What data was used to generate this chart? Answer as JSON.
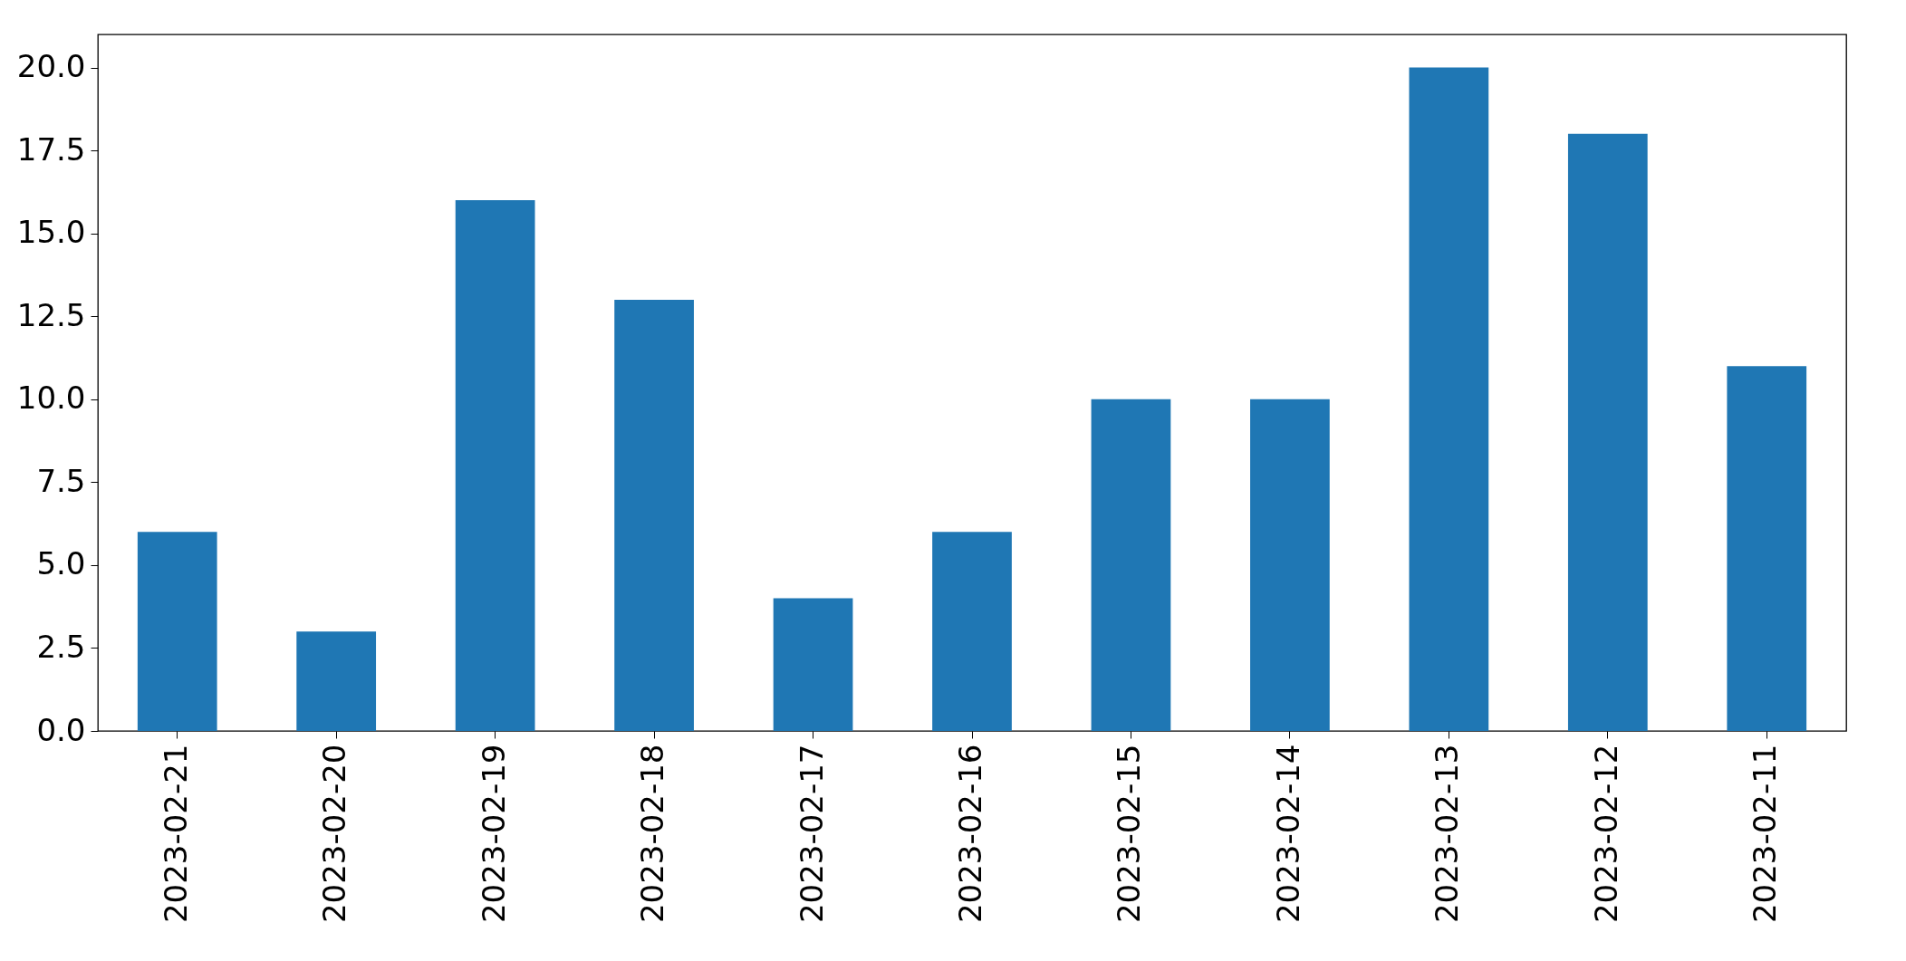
{
  "chart_data": {
    "type": "bar",
    "categories": [
      "2023-02-21",
      "2023-02-20",
      "2023-02-19",
      "2023-02-18",
      "2023-02-17",
      "2023-02-16",
      "2023-02-15",
      "2023-02-14",
      "2023-02-13",
      "2023-02-12",
      "2023-02-11"
    ],
    "values": [
      6,
      3,
      16,
      13,
      4,
      6,
      10,
      10,
      20,
      18,
      11
    ],
    "color": "#1f77b4",
    "ylim": [
      0,
      21
    ],
    "yticks": [
      {
        "value": 0,
        "label": "0.0"
      },
      2.5,
      {
        "value": 5,
        "label": "5.0"
      },
      7.5,
      {
        "value": 10,
        "label": "10.0"
      },
      12.5,
      {
        "value": 15,
        "label": "15.0"
      },
      17.5,
      {
        "value": 20,
        "label": "20.0"
      }
    ],
    "grid": false
  }
}
